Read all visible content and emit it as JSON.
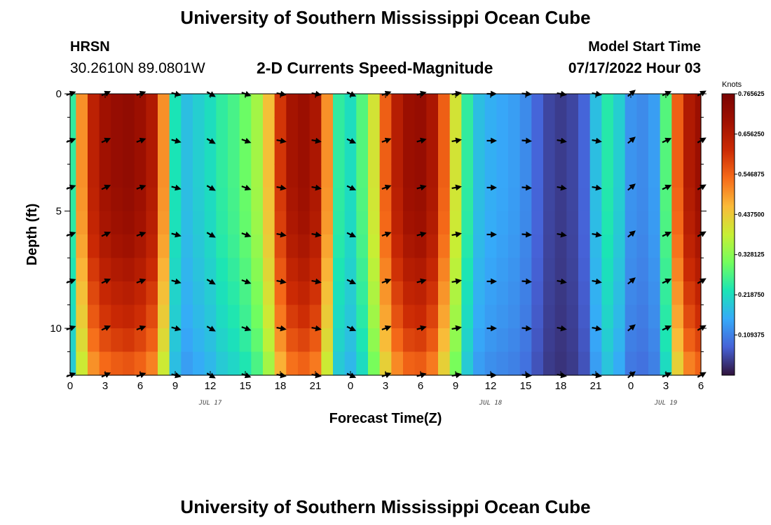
{
  "header": {
    "title": "University of Southern Mississippi Ocean Cube",
    "station_code": "HRSN",
    "coordinates": "30.2610N  89.0801W",
    "plot_title": "2-D Currents Speed-Magnitude",
    "model_label": "Model Start Time",
    "model_time": "07/17/2022 Hour 03"
  },
  "footer": {
    "title": "University of Southern Mississippi Ocean Cube"
  },
  "chart_data": {
    "type": "heatmap",
    "title": "2-D Currents Speed-Magnitude",
    "xlabel": "Forecast Time(Z)",
    "ylabel": "Depth (ft)",
    "x_range_hours": [
      0,
      54
    ],
    "y_range_ft": [
      0,
      12
    ],
    "x_tick_labels": [
      "0",
      "3",
      "6",
      "9",
      "12",
      "15",
      "18",
      "21",
      "0",
      "3",
      "6",
      "9",
      "12",
      "15",
      "18",
      "21",
      "0",
      "3",
      "6"
    ],
    "y_tick_labels": [
      "0",
      "5",
      "10"
    ],
    "date_labels": [
      {
        "text": "JUL 17",
        "hour": 12
      },
      {
        "text": "JUL 18",
        "hour": 36
      },
      {
        "text": "JUL 19",
        "hour": 51
      }
    ],
    "colorbar": {
      "unit": "Knots",
      "range": [
        0.0,
        0.765625
      ],
      "tick_labels": [
        "0.765625",
        "0.656250",
        "0.546875",
        "0.437500",
        "0.328125",
        "0.218750",
        "0.109375"
      ],
      "tick_values": [
        0.765625,
        0.65625,
        0.546875,
        0.4375,
        0.328125,
        0.21875,
        0.109375
      ]
    },
    "depth_profile": [
      1.0,
      1.0,
      1.0,
      1.0,
      0.99,
      0.98,
      0.96,
      0.93,
      0.9,
      0.87,
      0.83,
      0.78
    ],
    "speed_series": {
      "hours": [
        0,
        1,
        2,
        3,
        4,
        5,
        6,
        7,
        8,
        9,
        10,
        11,
        12,
        13,
        14,
        15,
        16,
        17,
        18,
        19,
        20,
        21,
        22,
        23,
        24,
        25,
        26,
        27,
        28,
        29,
        30,
        31,
        32,
        33,
        34,
        35,
        36,
        37,
        38,
        39,
        40,
        41,
        42,
        43,
        44,
        45,
        46,
        47,
        48,
        49,
        50,
        51,
        52,
        53,
        54
      ],
      "values": [
        0.25,
        0.5,
        0.64,
        0.69,
        0.71,
        0.72,
        0.7,
        0.66,
        0.5,
        0.23,
        0.18,
        0.2,
        0.22,
        0.25,
        0.27,
        0.3,
        0.35,
        0.45,
        0.6,
        0.68,
        0.7,
        0.67,
        0.5,
        0.25,
        0.22,
        0.28,
        0.4,
        0.55,
        0.65,
        0.7,
        0.71,
        0.67,
        0.55,
        0.4,
        0.25,
        0.18,
        0.16,
        0.15,
        0.14,
        0.12,
        0.08,
        0.05,
        0.04,
        0.05,
        0.08,
        0.18,
        0.24,
        0.2,
        0.13,
        0.12,
        0.14,
        0.28,
        0.55,
        0.66,
        0.7
      ]
    },
    "vector_hours": [
      0,
      3,
      6,
      9,
      12,
      15,
      18,
      21,
      24,
      27,
      30,
      33,
      36,
      39,
      42,
      45,
      48,
      51,
      54
    ],
    "vector_depths_ft": [
      0,
      2,
      4,
      6,
      8,
      10,
      12
    ],
    "vector_directions_deg": [
      20,
      25,
      20,
      -15,
      -30,
      -20,
      -10,
      -10,
      -25,
      20,
      15,
      10,
      0,
      -5,
      -10,
      -10,
      40,
      25,
      30
    ]
  }
}
